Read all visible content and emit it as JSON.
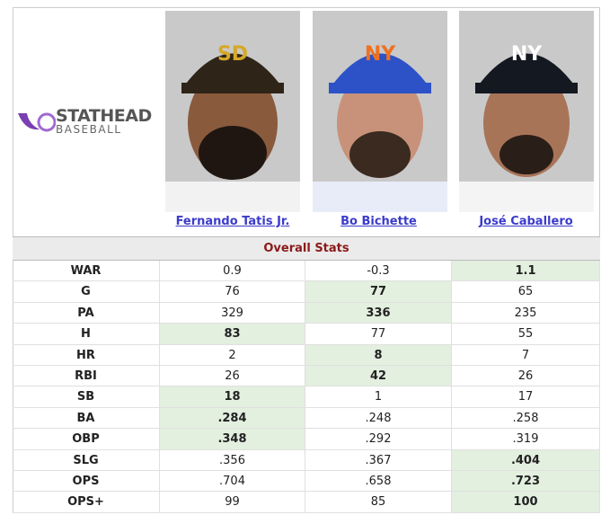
{
  "logo": {
    "title": "STATHEAD",
    "subtitle": "BASEBALL"
  },
  "players": [
    {
      "name": "Fernando Tatis Jr."
    },
    {
      "name": "Bo Bichette"
    },
    {
      "name": "José Caballero"
    }
  ],
  "section": "Overall Stats",
  "rows": [
    {
      "stat": "WAR",
      "values": [
        "0.9",
        "-0.3",
        "1.1"
      ],
      "best": 2
    },
    {
      "stat": "G",
      "values": [
        "76",
        "77",
        "65"
      ],
      "best": 1
    },
    {
      "stat": "PA",
      "values": [
        "329",
        "336",
        "235"
      ],
      "best": 1
    },
    {
      "stat": "H",
      "values": [
        "83",
        "77",
        "55"
      ],
      "best": 0
    },
    {
      "stat": "HR",
      "values": [
        "2",
        "8",
        "7"
      ],
      "best": 1
    },
    {
      "stat": "RBI",
      "values": [
        "26",
        "42",
        "26"
      ],
      "best": 1
    },
    {
      "stat": "SB",
      "values": [
        "18",
        "1",
        "17"
      ],
      "best": 0
    },
    {
      "stat": "BA",
      "values": [
        ".284",
        ".248",
        ".258"
      ],
      "best": 0
    },
    {
      "stat": "OBP",
      "values": [
        ".348",
        ".292",
        ".319"
      ],
      "best": 0
    },
    {
      "stat": "SLG",
      "values": [
        ".356",
        ".367",
        ".404"
      ],
      "best": 2
    },
    {
      "stat": "OPS",
      "values": [
        ".704",
        ".658",
        ".723"
      ],
      "best": 2
    },
    {
      "stat": "OPS+",
      "values": [
        "99",
        "85",
        "100"
      ],
      "best": 2
    }
  ]
}
